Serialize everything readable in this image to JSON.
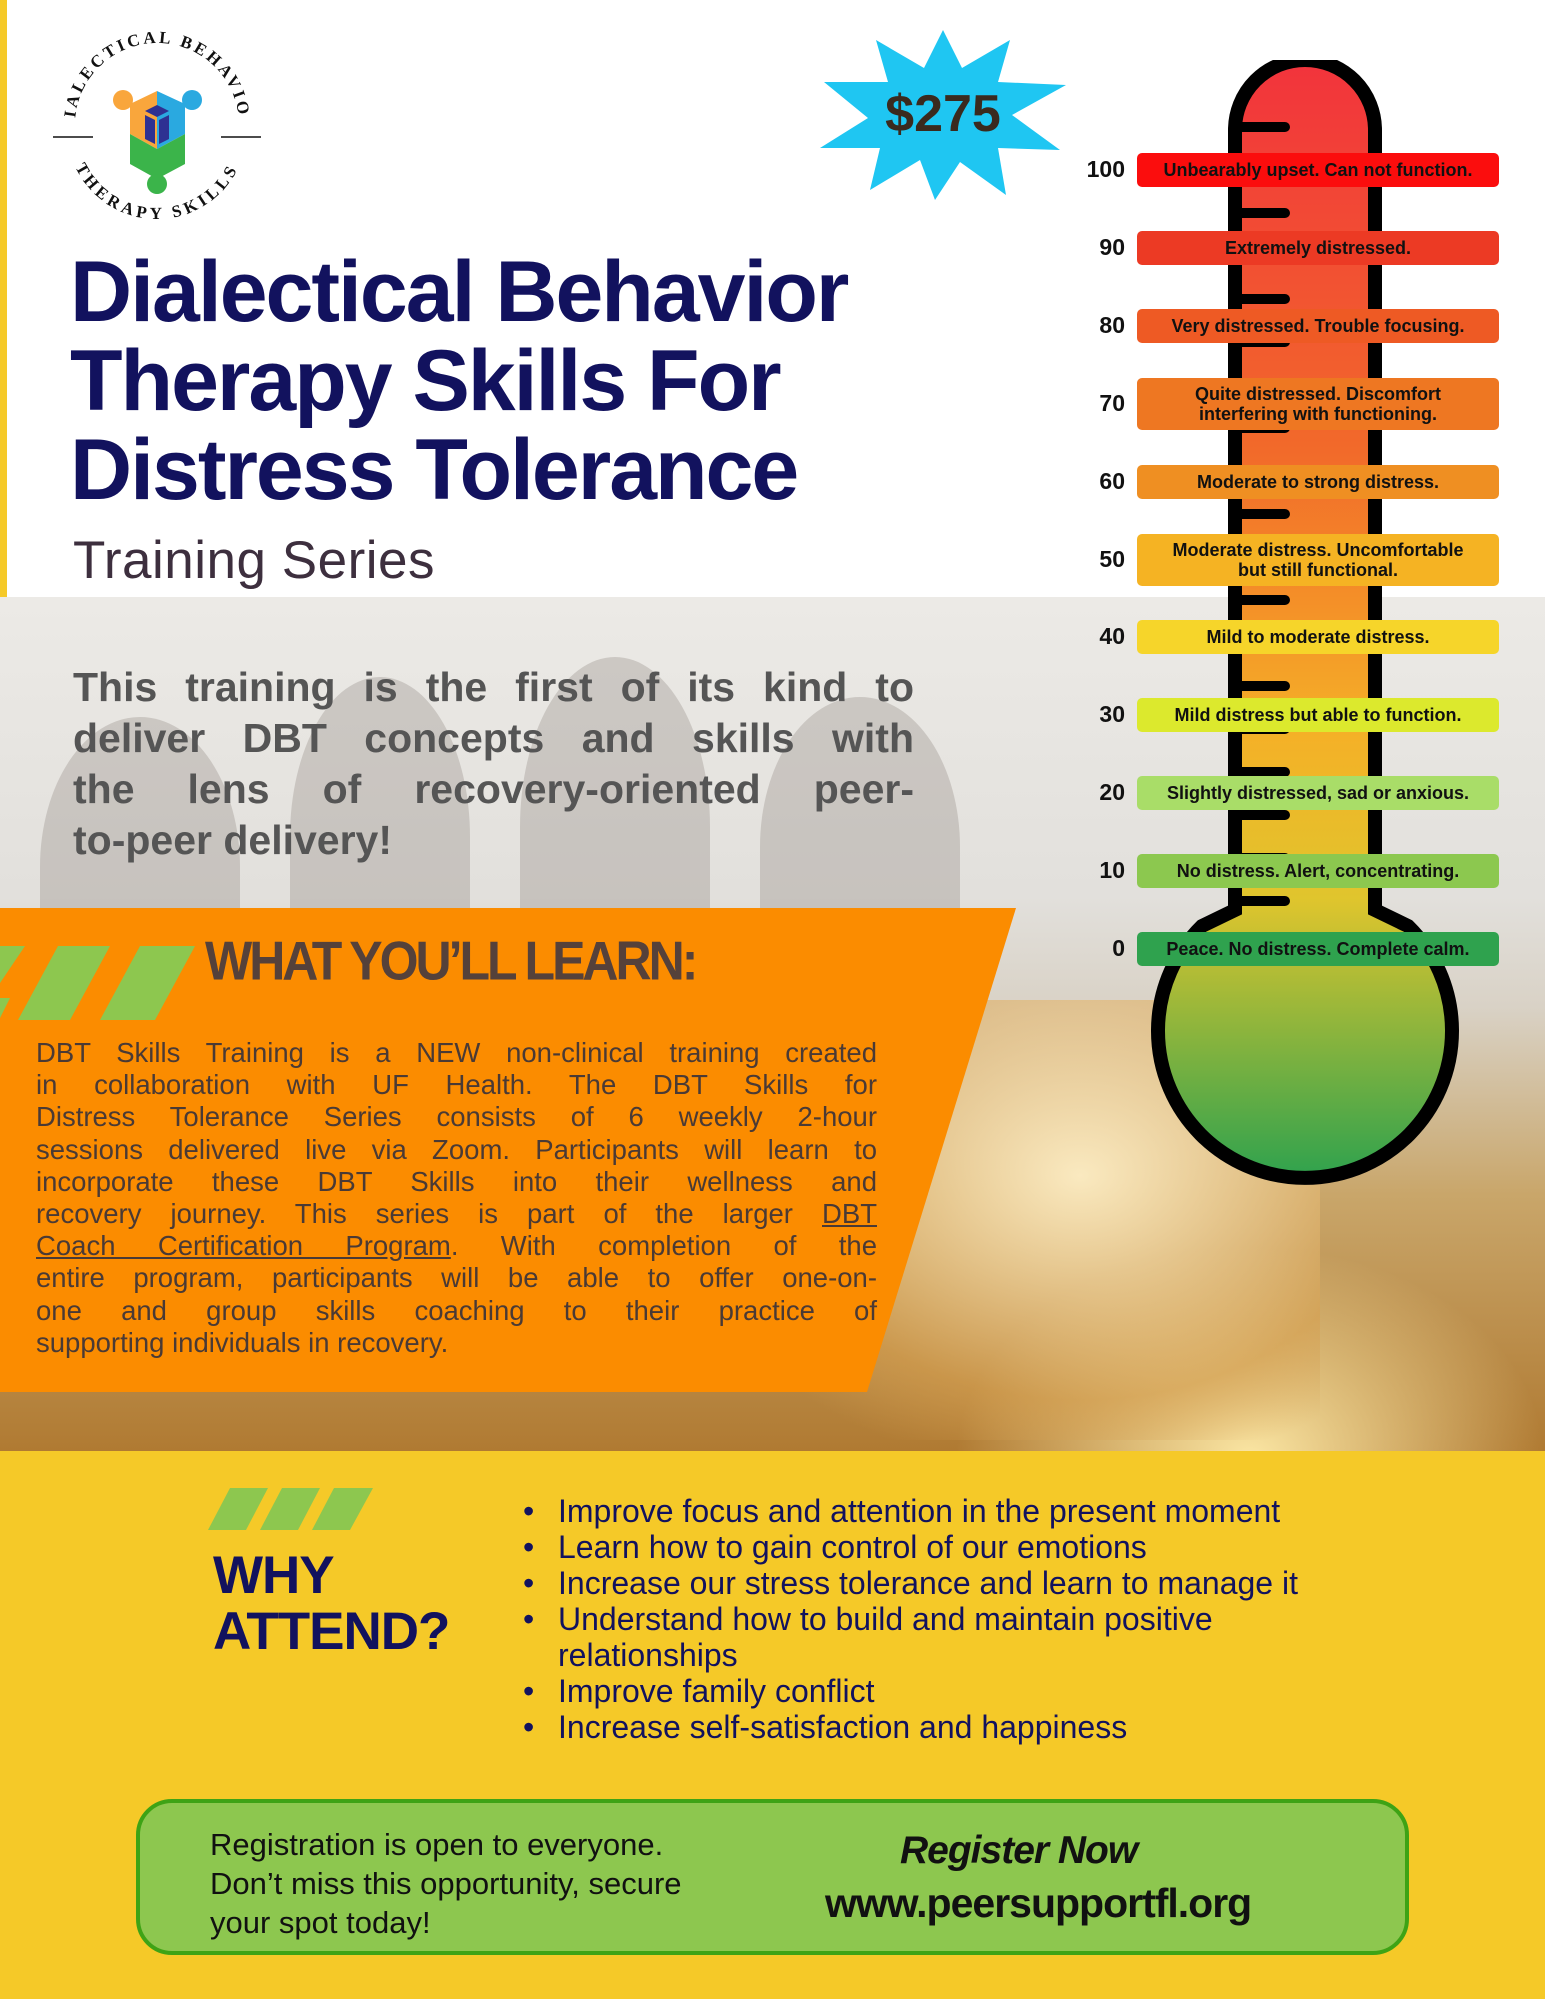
{
  "logo": {
    "top_text": "DIALECTICAL BEHAVIOR",
    "bottom_text": "THERAPY SKILLS"
  },
  "price": "$275",
  "title": [
    "Dialectical Behavior",
    "Therapy Skills For",
    "Distress Tolerance"
  ],
  "subtitle": "Training Series",
  "intro_lines": [
    "This training is the first of its kind to",
    "deliver DBT concepts and skills with",
    "the lens of recovery-oriented peer-",
    "to-peer delivery!"
  ],
  "learn": {
    "heading": "WHAT YOU’LL LEARN:",
    "lines": [
      [
        {
          "text": "DBT Skills Training is a NEW non-clinical training created"
        }
      ],
      [
        {
          "text": "in collaboration with UF Health. The DBT Skills for"
        }
      ],
      [
        {
          "text": "Distress Tolerance Series consists of 6 weekly 2-hour"
        }
      ],
      [
        {
          "text": "sessions delivered live via Zoom. Participants will learn to"
        }
      ],
      [
        {
          "text": "incorporate these DBT Skills into their wellness and"
        }
      ],
      [
        {
          "text": "recovery journey. This series is part of the larger "
        },
        {
          "text": "DBT",
          "link": true
        }
      ],
      [
        {
          "text": "Coach Certification Program",
          "link": true
        },
        {
          "text": ". With completion of the"
        }
      ],
      [
        {
          "text": "entire program, participants will be able to offer one-on-"
        }
      ],
      [
        {
          "text": "one and group skills coaching to their practice of"
        }
      ],
      [
        {
          "text": "supporting individuals in recovery."
        }
      ]
    ]
  },
  "why": {
    "heading": [
      "WHY",
      "ATTEND?"
    ],
    "bullets": [
      "Improve focus and attention in the present moment",
      "Learn how to gain control of our emotions",
      "Increase our stress tolerance and learn to manage it",
      "Understand how to build and maintain positive relationships",
      "Improve family conflict",
      "Increase self-satisfaction and happiness"
    ]
  },
  "cta": {
    "left": [
      "Registration is open to everyone.",
      "Don’t miss this opportunity, secure",
      "your spot today!"
    ],
    "register": "Register Now",
    "url": "www.peersupportfl.org"
  },
  "scale": [
    {
      "value": "100",
      "label": "Unbearably upset. Can not function.",
      "color": "#fb0d0d"
    },
    {
      "value": "90",
      "label": "Extremely distressed.",
      "color": "#ec3a24"
    },
    {
      "value": "80",
      "label": "Very distressed. Trouble focusing.",
      "color": "#ee5a24"
    },
    {
      "value": "70",
      "label": "Quite distressed. Discomfort interfering with functioning.",
      "color": "#ee7722"
    },
    {
      "value": "60",
      "label": "Moderate to strong distress.",
      "color": "#ef8f22"
    },
    {
      "value": "50",
      "label": "Moderate distress. Uncomfortable but still functional.",
      "color": "#f5b323"
    },
    {
      "value": "40",
      "label": "Mild to moderate distress.",
      "color": "#f6d52a"
    },
    {
      "value": "30",
      "label": "Mild distress but able to function.",
      "color": "#dce92d"
    },
    {
      "value": "20",
      "label": "Slightly distressed, sad or anxious.",
      "color": "#a9dd68"
    },
    {
      "value": "10",
      "label": "No distress. Alert, concentrating.",
      "color": "#8cc84f"
    },
    {
      "value": "0",
      "label": "Peace. No distress. Complete calm.",
      "color": "#2fa24e"
    }
  ]
}
